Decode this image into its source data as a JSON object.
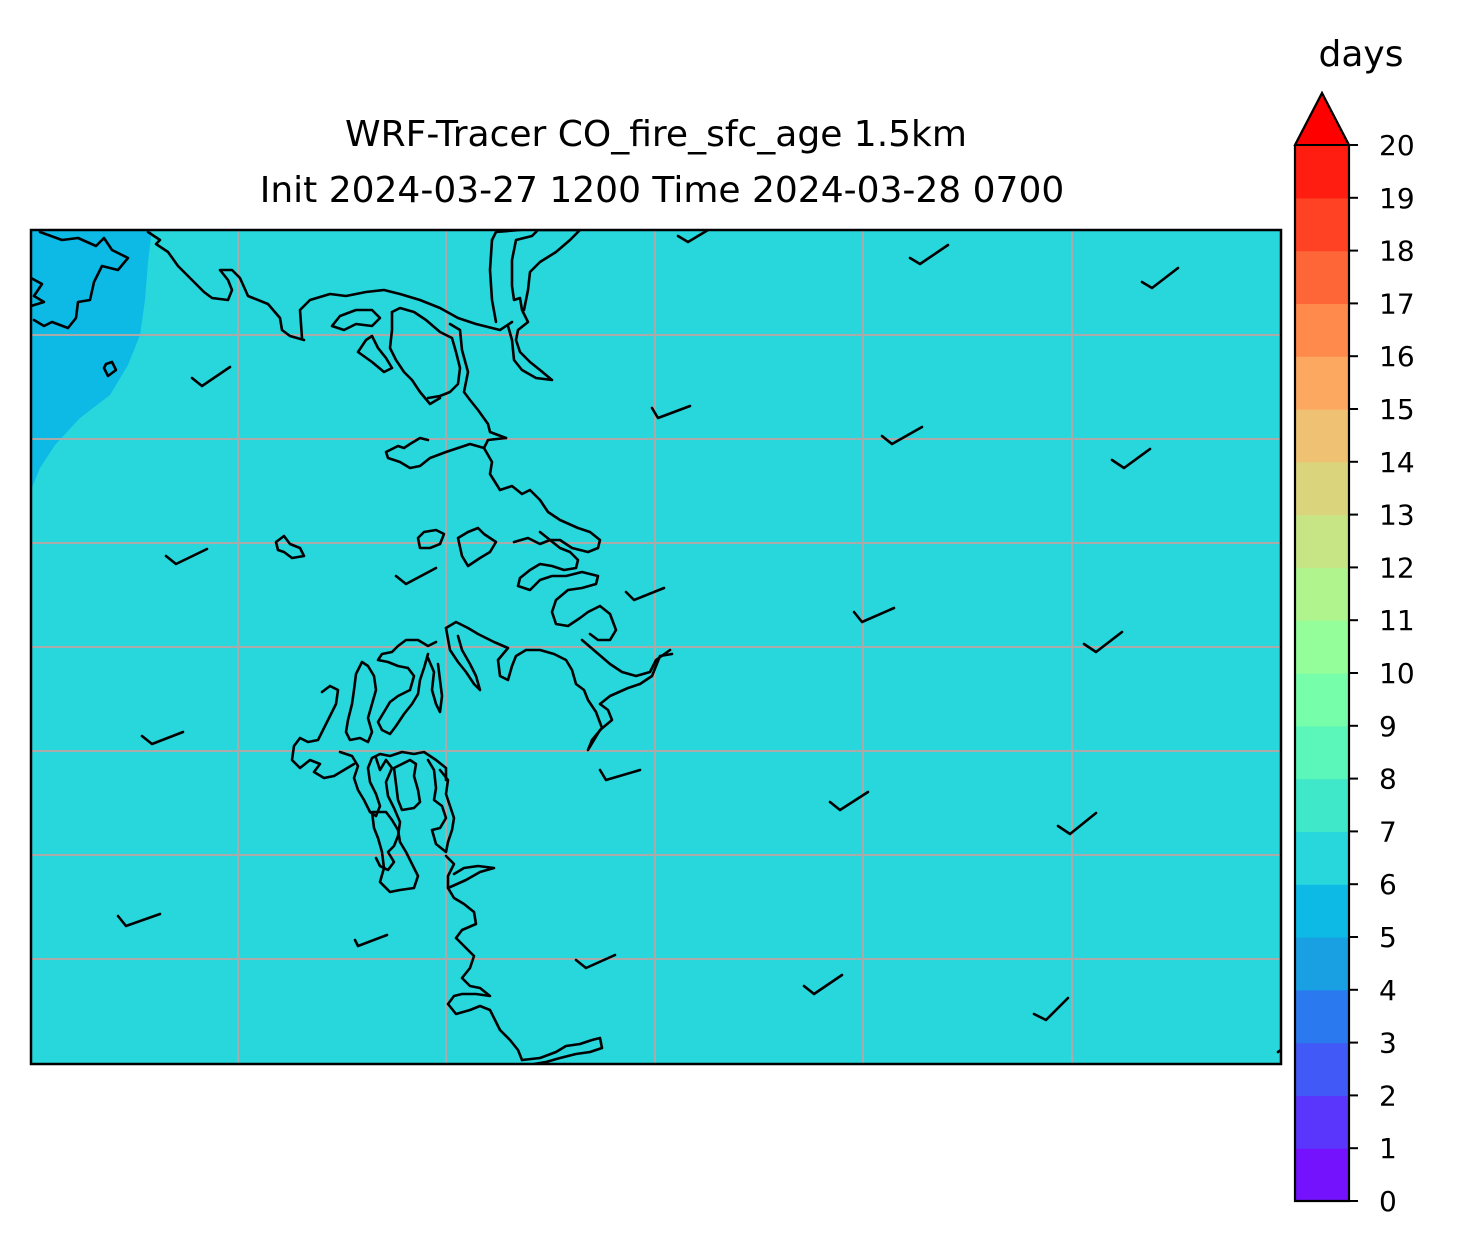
{
  "chart_data": {
    "type": "heatmap",
    "title_lines": [
      "WRF-Tracer CO_fire_sfc_age 1.5km",
      "Init 2024-03-27 1200 Time 2024-03-28 0700"
    ],
    "colorbar": {
      "unit": "days",
      "ticks": [
        "0",
        "1",
        "2",
        "3",
        "4",
        "5",
        "6",
        "7",
        "8",
        "9",
        "10",
        "11",
        "12",
        "13",
        "14",
        "15",
        "16",
        "17",
        "18",
        "19",
        "20"
      ],
      "extend": "max",
      "level_colors": [
        "#7412fe",
        "#5a36fc",
        "#4159f6",
        "#2b79ee",
        "#18a0e3",
        "#0dbae6",
        "#28d7dc",
        "#3fe8c8",
        "#5bf6ba",
        "#77feaa",
        "#93fe9a",
        "#b0f48e",
        "#c8e585",
        "#dad57d",
        "#efc172",
        "#fca860",
        "#ff8a4c",
        "#ff6637",
        "#ff4223",
        "#ff1c10",
        "#ff0000"
      ]
    },
    "field": {
      "dominant_value_range_days": [
        6,
        7
      ],
      "dominant_color": "#28d7dc",
      "secondary_value_range_days": [
        5,
        6
      ],
      "secondary_color": "#0dbae6",
      "secondary_location": "top-left"
    },
    "gridlines": true,
    "wind_barbs": true,
    "coastlines": true
  }
}
